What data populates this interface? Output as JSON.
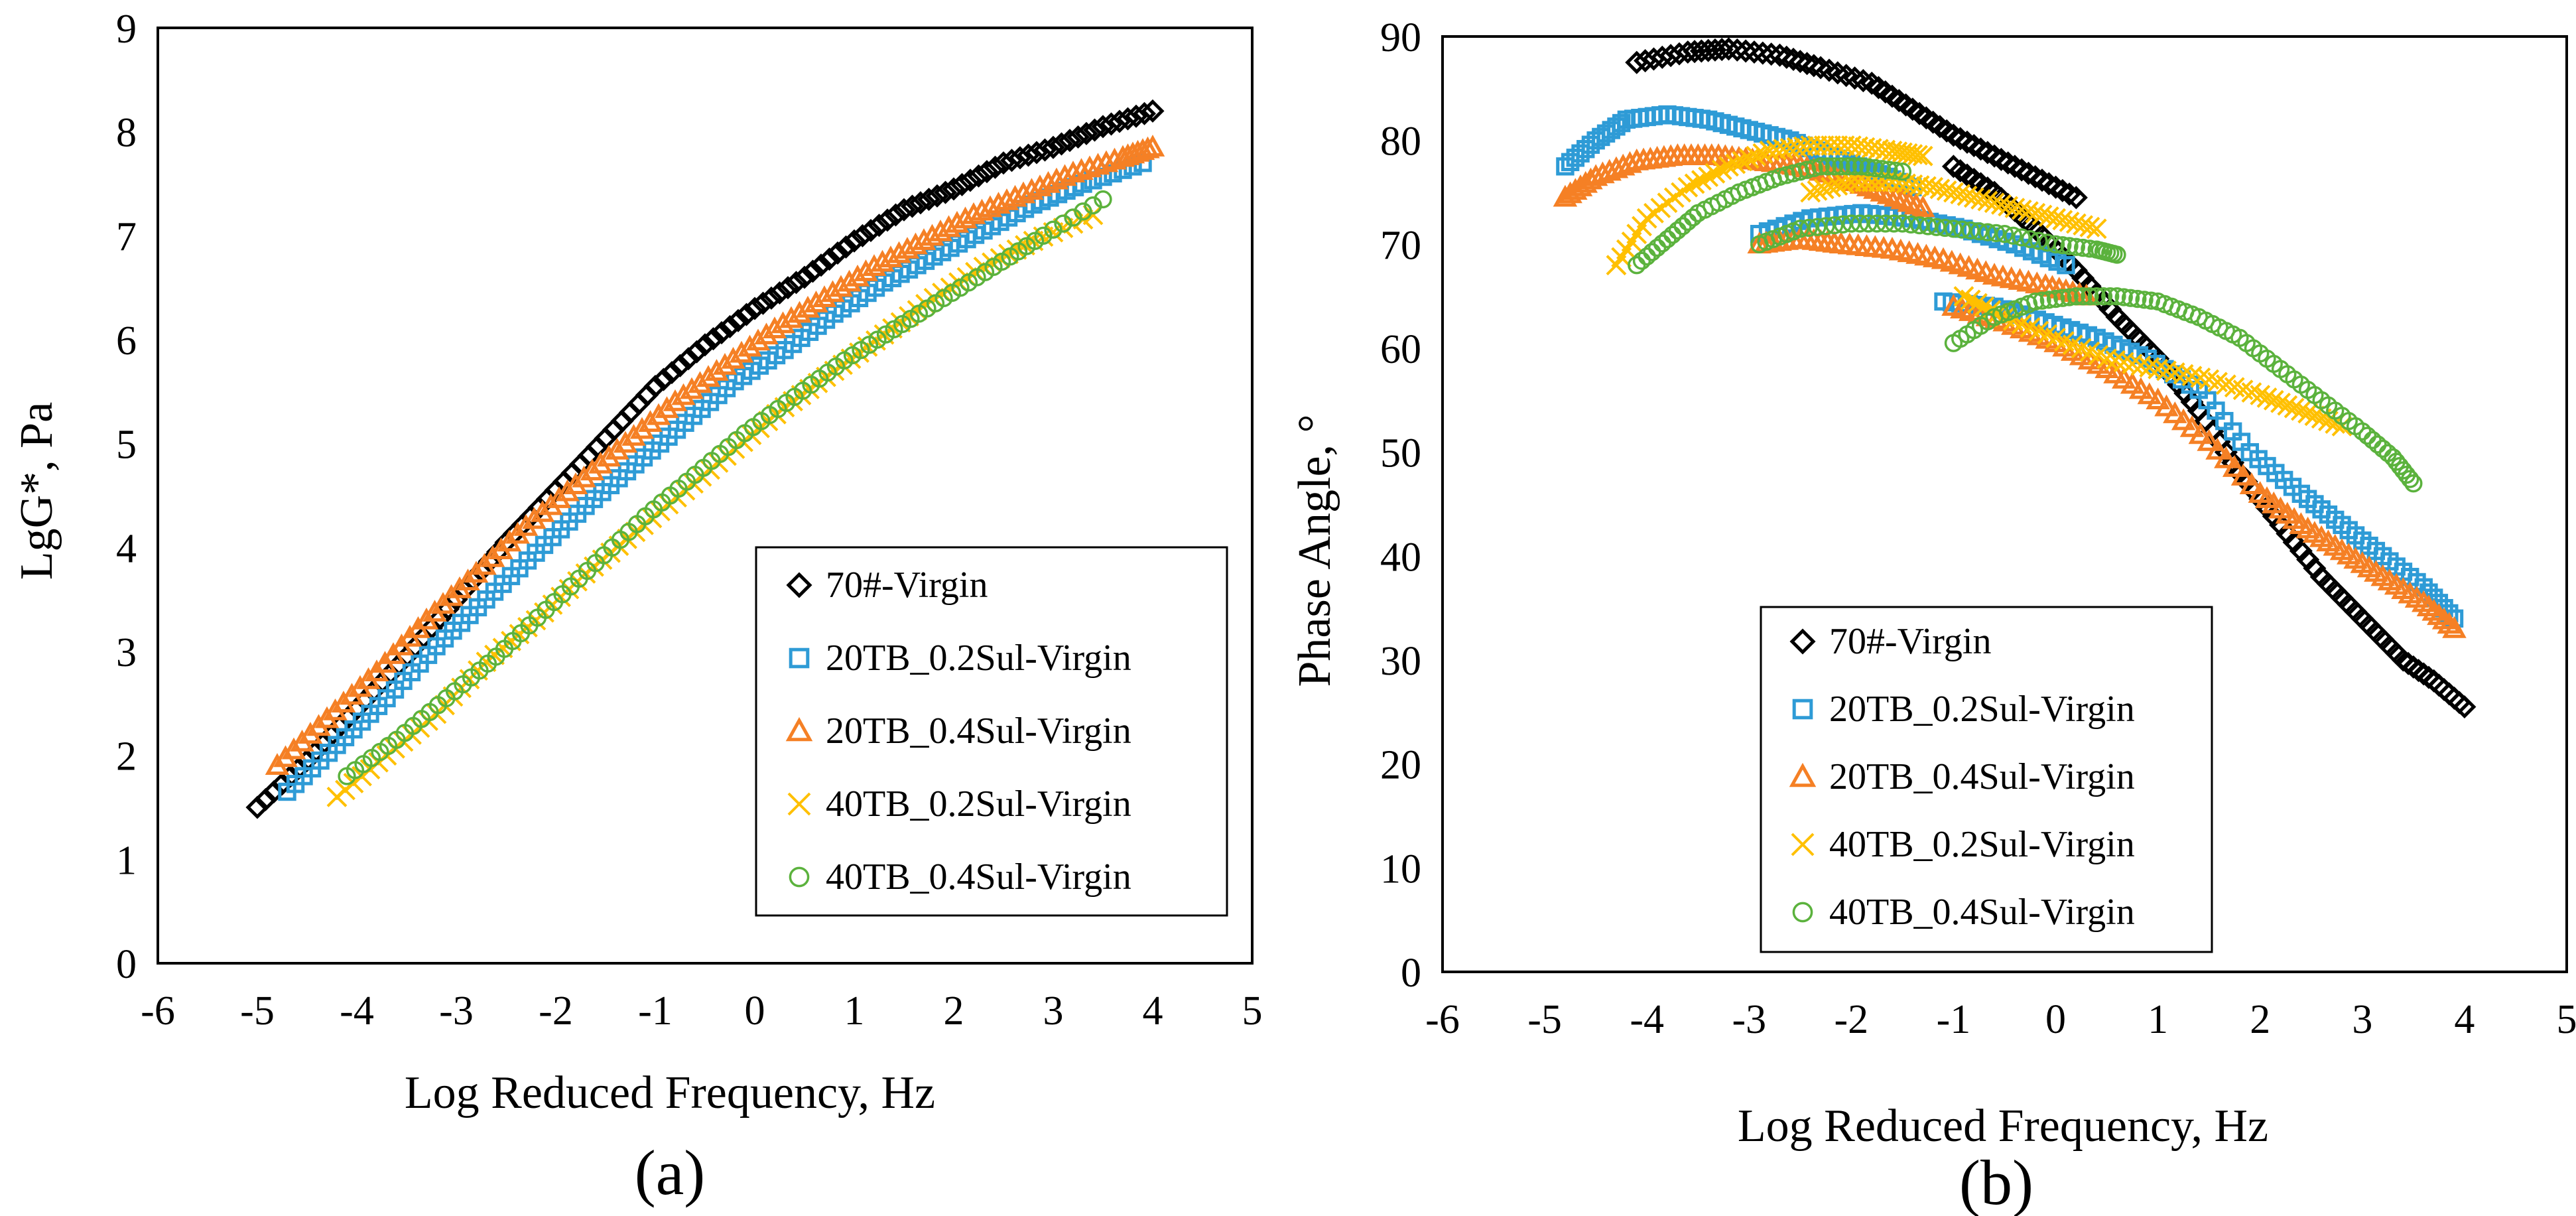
{
  "chart_data": [
    {
      "panel": "(a)",
      "type": "scatter",
      "xlabel": "Log Reduced Frequency, Hz",
      "ylabel": "LgG*, Pa",
      "xlim": [
        -6,
        5
      ],
      "ylim": [
        0,
        9
      ],
      "xticks": [
        -6,
        -5,
        -4,
        -3,
        -2,
        -1,
        0,
        1,
        2,
        3,
        4,
        5
      ],
      "yticks": [
        0,
        1,
        2,
        3,
        4,
        5,
        6,
        7,
        8,
        9
      ],
      "grid": false,
      "legend_position": "bottom-right",
      "series": [
        {
          "name": "70#-Virgin",
          "marker": "diamond",
          "color": "#000000",
          "x": [
            -5.0,
            -4.5,
            -4.0,
            -3.5,
            -3.0,
            -2.5,
            -2.0,
            -1.5,
            -1.0,
            -0.5,
            0.0,
            0.5,
            1.0,
            1.5,
            2.0,
            2.5,
            3.0,
            3.5,
            4.0
          ],
          "y": [
            1.5,
            1.95,
            2.45,
            2.95,
            3.5,
            4.05,
            4.55,
            5.05,
            5.55,
            5.95,
            6.3,
            6.6,
            6.95,
            7.25,
            7.45,
            7.7,
            7.85,
            8.05,
            8.2
          ]
        },
        {
          "name": "20TB_0.2Sul-Virgin",
          "marker": "square",
          "color": "#2E9BD6",
          "x": [
            -4.7,
            -4.2,
            -3.7,
            -3.2,
            -2.7,
            -2.2,
            -1.7,
            -1.2,
            -0.7,
            -0.2,
            0.3,
            0.8,
            1.3,
            1.8,
            2.3,
            2.8,
            3.3,
            3.9
          ],
          "y": [
            1.65,
            2.1,
            2.55,
            3.05,
            3.5,
            3.95,
            4.4,
            4.8,
            5.2,
            5.6,
            5.9,
            6.25,
            6.55,
            6.8,
            7.05,
            7.3,
            7.5,
            7.7
          ]
        },
        {
          "name": "20TB_0.4Sul-Virgin",
          "marker": "triangle",
          "color": "#F58025",
          "x": [
            -4.8,
            -4.3,
            -3.8,
            -3.3,
            -2.8,
            -2.3,
            -1.8,
            -1.3,
            -0.8,
            -0.3,
            0.2,
            0.7,
            1.2,
            1.7,
            2.2,
            2.7,
            3.2,
            3.7,
            4.0
          ],
          "y": [
            1.9,
            2.35,
            2.8,
            3.3,
            3.75,
            4.2,
            4.6,
            5.0,
            5.4,
            5.75,
            6.1,
            6.4,
            6.7,
            6.95,
            7.2,
            7.4,
            7.6,
            7.75,
            7.85
          ]
        },
        {
          "name": "40TB_0.2Sul-Virgin",
          "marker": "x",
          "color": "#FFC000",
          "x": [
            -4.2,
            -3.7,
            -3.2,
            -2.7,
            -2.2,
            -1.7,
            -1.2,
            -0.7,
            -0.2,
            0.3,
            0.8,
            1.3,
            1.8,
            2.3,
            2.8,
            3.4
          ],
          "y": [
            1.6,
            2.0,
            2.4,
            2.9,
            3.3,
            3.75,
            4.15,
            4.55,
            4.95,
            5.35,
            5.7,
            6.05,
            6.4,
            6.7,
            6.95,
            7.2
          ]
        },
        {
          "name": "40TB_0.4Sul-Virgin",
          "marker": "circle",
          "color": "#5BB23D",
          "x": [
            -4.1,
            -3.6,
            -3.1,
            -2.6,
            -2.1,
            -1.6,
            -1.1,
            -0.6,
            -0.1,
            0.4,
            0.9,
            1.4,
            1.9,
            2.4,
            2.9,
            3.5
          ],
          "y": [
            1.8,
            2.15,
            2.55,
            2.95,
            3.4,
            3.85,
            4.3,
            4.7,
            5.1,
            5.45,
            5.8,
            6.1,
            6.4,
            6.7,
            7.0,
            7.35
          ]
        }
      ]
    },
    {
      "panel": "(b)",
      "type": "scatter",
      "xlabel": "Log Reduced Frequency, Hz",
      "ylabel": "Phase Angle, °",
      "xlim": [
        -6,
        5
      ],
      "ylim": [
        0,
        90
      ],
      "xticks": [
        -6,
        -5,
        -4,
        -3,
        -2,
        -1,
        0,
        1,
        2,
        3,
        4,
        5
      ],
      "yticks": [
        0,
        10,
        20,
        30,
        40,
        50,
        60,
        70,
        80,
        90
      ],
      "grid": false,
      "legend_position": "bottom-center",
      "series": [
        {
          "name": "70#-Virgin",
          "marker": "diamond",
          "color": "#000000",
          "x": [
            -4.1,
            -3.6,
            -3.2,
            -2.7,
            -2.3,
            -1.8,
            -1.4,
            -1.0,
            -0.6,
            -0.2,
            0.2,
            -1.0,
            -0.6,
            -0.2,
            0.2,
            0.6,
            1.0,
            1.4,
            1.8,
            2.2,
            2.6,
            3.0,
            3.4,
            3.7,
            4.0
          ],
          "y": [
            87.5,
            88.5,
            88.8,
            88.2,
            87,
            85.5,
            83,
            80.5,
            78.5,
            76.5,
            74.5,
            77.5,
            75,
            71.5,
            67.5,
            63,
            59,
            54,
            48,
            43,
            38,
            34,
            30,
            28,
            25.5
          ]
        },
        {
          "name": "20TB_0.2Sul-Virgin",
          "marker": "square",
          "color": "#2E9BD6",
          "x": [
            -4.8,
            -4.5,
            -4.2,
            -3.8,
            -3.4,
            -3.0,
            -2.6,
            -2.2,
            -1.8,
            -1.4,
            -2.9,
            -2.4,
            -1.9,
            -1.4,
            -0.9,
            -0.4,
            0.1,
            -1.1,
            -0.6,
            -0.1,
            0.4,
            0.9,
            1.4,
            1.9,
            2.4,
            2.8,
            3.2,
            3.6,
            3.9
          ],
          "y": [
            77.5,
            80,
            82,
            82.5,
            82,
            81,
            80,
            78.5,
            77,
            75.5,
            71,
            72.5,
            73,
            72.5,
            71.5,
            70,
            68,
            64.5,
            64,
            62.5,
            61,
            59,
            56,
            50,
            46,
            43,
            40,
            37,
            34
          ]
        },
        {
          "name": "20TB_0.4Sul-Virgin",
          "marker": "triangle",
          "color": "#F58025",
          "x": [
            -4.8,
            -4.5,
            -4.1,
            -3.7,
            -3.3,
            -2.9,
            -2.5,
            -2.1,
            -1.7,
            -1.3,
            -2.9,
            -2.5,
            -2.1,
            -1.6,
            -1.1,
            -0.6,
            -0.1,
            0.3,
            -1.0,
            -0.5,
            0.0,
            0.5,
            1.0,
            1.5,
            2.0,
            2.4,
            2.8,
            3.2,
            3.6,
            3.9
          ],
          "y": [
            74.5,
            76.5,
            78,
            78.5,
            78.5,
            78,
            77.5,
            76.5,
            75,
            73.5,
            70,
            70.5,
            70,
            69.5,
            68.5,
            67,
            66,
            65,
            64,
            62.5,
            60.5,
            58,
            55,
            51,
            46,
            43,
            40.5,
            38,
            35.5,
            33
          ]
        },
        {
          "name": "40TB_0.2Sul-Virgin",
          "marker": "x",
          "color": "#FFC000",
          "x": [
            -4.3,
            -4.0,
            -3.6,
            -3.2,
            -2.8,
            -2.4,
            -2.0,
            -1.6,
            -1.3,
            -2.4,
            -2.0,
            -1.6,
            -1.2,
            -0.8,
            -0.4,
            0.0,
            0.4,
            -0.9,
            -0.5,
            0.0,
            0.5,
            1.0,
            1.5,
            2.0,
            2.4,
            2.8
          ],
          "y": [
            68,
            72.5,
            75.5,
            77.5,
            79,
            79.5,
            79.5,
            79,
            78.5,
            75,
            76,
            76,
            75.5,
            74.5,
            73.5,
            72.5,
            71.5,
            65,
            63,
            61,
            59,
            58,
            57,
            55.5,
            54,
            52.5
          ]
        },
        {
          "name": "40TB_0.4Sul-Virgin",
          "marker": "circle",
          "color": "#5BB23D",
          "x": [
            -4.1,
            -3.8,
            -3.5,
            -3.1,
            -2.7,
            -2.3,
            -1.9,
            -1.5,
            -2.9,
            -2.5,
            -2.0,
            -1.5,
            -1.0,
            -0.5,
            0.0,
            0.4,
            0.6,
            -1.0,
            -0.6,
            -0.2,
            0.2,
            0.6,
            1.0,
            1.4,
            1.8,
            2.2,
            2.6,
            3.0,
            3.3,
            3.5
          ],
          "y": [
            68,
            70.5,
            73,
            75,
            76.5,
            77.5,
            77.5,
            77,
            70,
            71.5,
            72,
            72,
            71.5,
            71,
            70,
            69.5,
            69,
            60.5,
            63,
            64.5,
            65,
            65,
            64.5,
            63,
            61,
            58,
            55,
            52,
            49.5,
            47
          ]
        }
      ]
    }
  ],
  "legend_labels": [
    "70#-Virgin",
    "20TB_0.2Sul-Virgin",
    "20TB_0.4Sul-Virgin",
    "40TB_0.2Sul-Virgin",
    "40TB_0.4Sul-Virgin"
  ]
}
